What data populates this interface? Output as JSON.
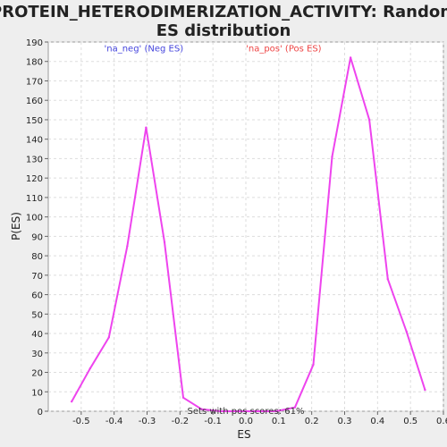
{
  "chart_data": {
    "type": "line",
    "title": "PROTEIN_HETERODIMERIZATION_ACTIVITY: Random ES distribution",
    "title_lines": [
      "PROTEIN_HETERODIMERIZATION_ACTIVITY: Random",
      "ES distribution"
    ],
    "xlabel": "ES",
    "ylabel": "P(ES)",
    "xlim": [
      -0.6,
      0.6
    ],
    "ylim": [
      0,
      190
    ],
    "x_ticks": [
      -0.5,
      -0.4,
      -0.3,
      -0.2,
      -0.1,
      0.0,
      0.1,
      0.2,
      0.3,
      0.4,
      0.5,
      0.6
    ],
    "x_tick_labels": [
      "-0.5",
      "-0.4",
      "-0.3",
      "-0.2",
      "-0.1",
      "0.0",
      "0.1",
      "0.2",
      "0.3",
      "0.4",
      "0.5",
      "0.6"
    ],
    "y_ticks": [
      0,
      10,
      20,
      30,
      40,
      50,
      60,
      70,
      80,
      90,
      100,
      110,
      120,
      130,
      140,
      150,
      160,
      170,
      180,
      190
    ],
    "grid": true,
    "series_color": "#ee44ee",
    "series": [
      {
        "x": [
          -0.529,
          -0.473,
          -0.416,
          -0.36,
          -0.303,
          -0.247,
          -0.19,
          -0.134,
          -0.077,
          -0.021,
          0.036,
          0.092,
          0.149,
          0.205,
          0.262,
          0.318,
          0.375,
          0.431,
          0.488,
          0.544
        ],
        "values": [
          5,
          22,
          38,
          85,
          146,
          87,
          7,
          1,
          0,
          0,
          0,
          0,
          2,
          24,
          131,
          182,
          150,
          68,
          41,
          11
        ]
      }
    ],
    "annotations": [
      {
        "text": "'na_neg' (Neg ES)",
        "color": "#4444dd",
        "x": -0.31,
        "y": 187
      },
      {
        "text": "'na_pos' (Pos ES)",
        "color": "#ee4444",
        "x": 0.115,
        "y": 187
      },
      {
        "text": "Sets with pos scores: 61%",
        "color": "#333333",
        "x": 0.0,
        "y": 0.5
      }
    ]
  }
}
